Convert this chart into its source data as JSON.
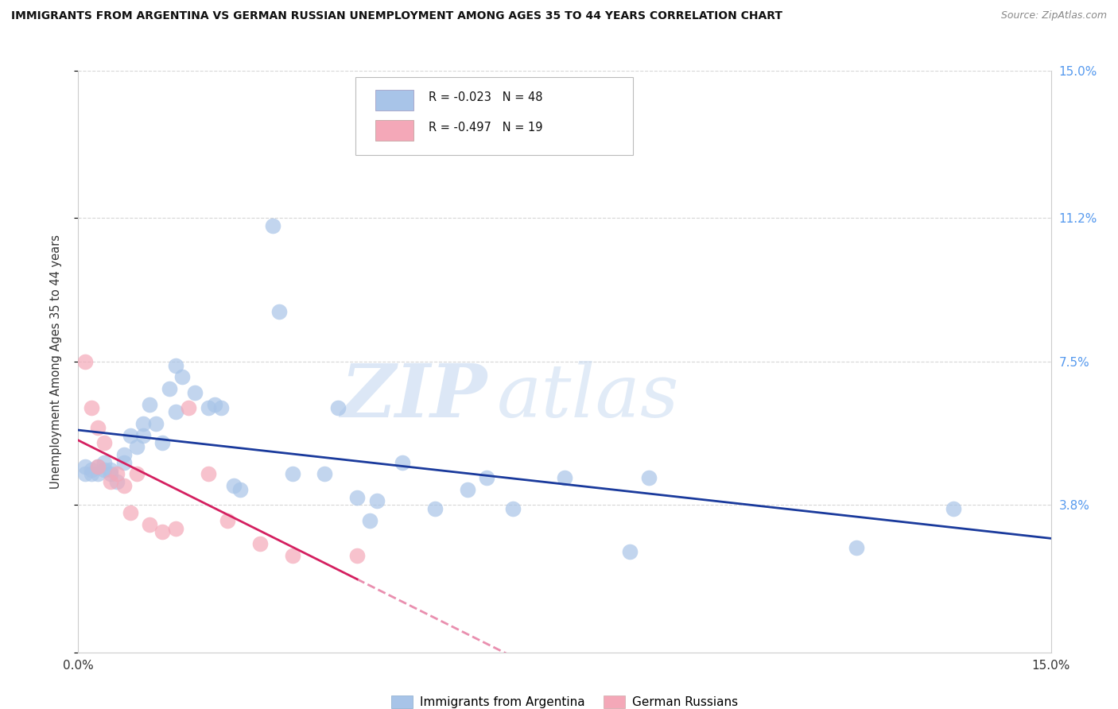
{
  "title": "IMMIGRANTS FROM ARGENTINA VS GERMAN RUSSIAN UNEMPLOYMENT AMONG AGES 35 TO 44 YEARS CORRELATION CHART",
  "source": "Source: ZipAtlas.com",
  "ylabel": "Unemployment Among Ages 35 to 44 years",
  "xlim": [
    0.0,
    0.15
  ],
  "ylim": [
    0.0,
    0.15
  ],
  "argentina_R": "-0.023",
  "argentina_N": "48",
  "german_russian_R": "-0.497",
  "german_russian_N": "19",
  "argentina_color": "#a8c4e8",
  "german_russian_color": "#f4a8b8",
  "trend_argentina_color": "#1a3a9c",
  "trend_german_russian_color": "#d42060",
  "argentina_x": [
    0.001,
    0.001,
    0.002,
    0.002,
    0.003,
    0.003,
    0.004,
    0.004,
    0.005,
    0.005,
    0.006,
    0.007,
    0.007,
    0.008,
    0.009,
    0.01,
    0.01,
    0.011,
    0.012,
    0.013,
    0.014,
    0.015,
    0.015,
    0.016,
    0.018,
    0.02,
    0.021,
    0.022,
    0.024,
    0.025,
    0.03,
    0.031,
    0.033,
    0.038,
    0.04,
    0.043,
    0.045,
    0.046,
    0.05,
    0.055,
    0.06,
    0.063,
    0.067,
    0.075,
    0.085,
    0.088,
    0.12,
    0.135
  ],
  "argentina_y": [
    0.046,
    0.048,
    0.046,
    0.047,
    0.046,
    0.048,
    0.047,
    0.049,
    0.047,
    0.046,
    0.044,
    0.049,
    0.051,
    0.056,
    0.053,
    0.056,
    0.059,
    0.064,
    0.059,
    0.054,
    0.068,
    0.074,
    0.062,
    0.071,
    0.067,
    0.063,
    0.064,
    0.063,
    0.043,
    0.042,
    0.11,
    0.088,
    0.046,
    0.046,
    0.063,
    0.04,
    0.034,
    0.039,
    0.049,
    0.037,
    0.042,
    0.045,
    0.037,
    0.045,
    0.026,
    0.045,
    0.027,
    0.037
  ],
  "german_russian_x": [
    0.001,
    0.002,
    0.003,
    0.003,
    0.004,
    0.005,
    0.006,
    0.007,
    0.008,
    0.009,
    0.011,
    0.013,
    0.015,
    0.017,
    0.02,
    0.023,
    0.028,
    0.033,
    0.043
  ],
  "german_russian_y": [
    0.075,
    0.063,
    0.058,
    0.048,
    0.054,
    0.044,
    0.046,
    0.043,
    0.036,
    0.046,
    0.033,
    0.031,
    0.032,
    0.063,
    0.046,
    0.034,
    0.028,
    0.025,
    0.025
  ],
  "trend_arg_x0": 0.0,
  "trend_arg_x1": 0.15,
  "trend_ger_solid_x0": 0.0,
  "trend_ger_solid_x1": 0.043,
  "trend_ger_dash_x0": 0.043,
  "trend_ger_dash_x1": 0.135,
  "watermark": "ZIPatlas",
  "background_color": "#ffffff",
  "grid_color": "#cccccc",
  "right_tick_color": "#5599ee",
  "yticks_right": [
    0.038,
    0.075,
    0.112,
    0.15
  ],
  "ytick_labels_right": [
    "3.8%",
    "7.5%",
    "11.2%",
    "15.0%"
  ]
}
